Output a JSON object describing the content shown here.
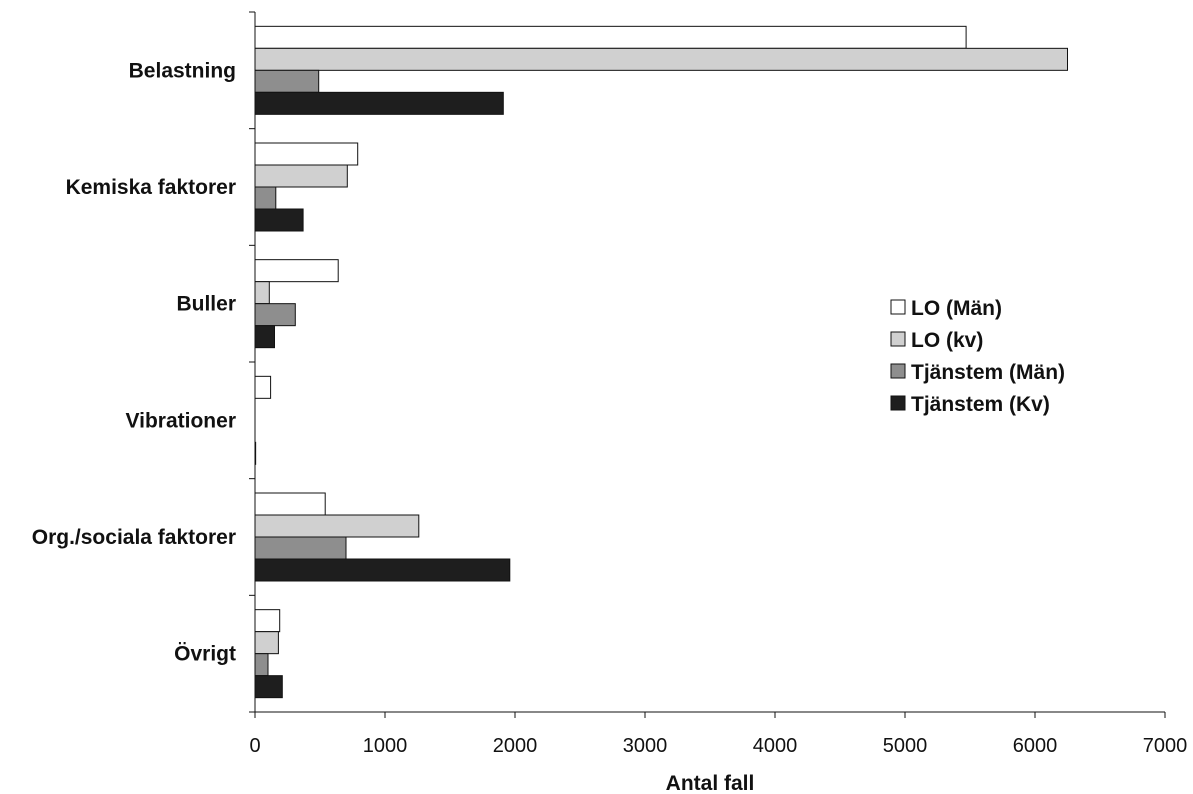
{
  "chart_data": {
    "type": "bar",
    "orientation": "horizontal",
    "categories": [
      "Belastning",
      "Kemiska faktorer",
      "Buller",
      "Vibrationer",
      "Org./sociala faktorer",
      "Övrigt"
    ],
    "series": [
      {
        "name": "LO (Män)",
        "color": "#ffffff",
        "values": [
          5470,
          790,
          640,
          120,
          540,
          190
        ]
      },
      {
        "name": "LO (kv)",
        "color": "#d0d0d0",
        "values": [
          6250,
          710,
          110,
          0,
          1260,
          180
        ]
      },
      {
        "name": "Tjänstem (Män)",
        "color": "#8e8e8e",
        "values": [
          490,
          160,
          310,
          0,
          700,
          100
        ]
      },
      {
        "name": "Tjänstem (Kv)",
        "color": "#1e1e1e",
        "values": [
          1910,
          370,
          150,
          5,
          1960,
          210
        ]
      }
    ],
    "xlabel": "Antal fall",
    "xlim": [
      0,
      7000
    ],
    "xticks": [
      "0",
      "1000",
      "2000",
      "3000",
      "4000",
      "5000",
      "6000",
      "7000"
    ],
    "legend_position": "right",
    "grid": false
  }
}
